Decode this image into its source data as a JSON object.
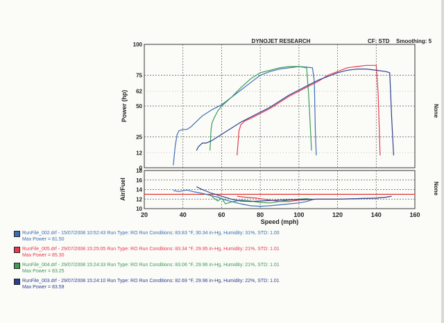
{
  "header": {
    "title": "DYNOJET RESEARCH",
    "cf": "CF: STD",
    "smoothing": "Smoothing: 5"
  },
  "right_labels": {
    "top": "None",
    "bottom": "None"
  },
  "chart_data": [
    {
      "type": "line",
      "title": "DYNOJET RESEARCH",
      "xlabel": "Speed (mph)",
      "ylabel": "Power (hp)",
      "xlim": [
        20,
        160
      ],
      "ylim": [
        0,
        100
      ],
      "x_ticks": [
        "20",
        "40",
        "60",
        "80",
        "100",
        "120",
        "140",
        "160"
      ],
      "y_ticks": [
        "0",
        "25",
        "50",
        "75",
        "100"
      ],
      "y_minor_ticks": [
        "12",
        "62"
      ],
      "grid": true,
      "series": [
        {
          "name": "RunFile_002.drf",
          "color": "#3a6fb3",
          "x": [
            35,
            36,
            37,
            38,
            40,
            42,
            44,
            46,
            50,
            55,
            60,
            65,
            70,
            75,
            80,
            85,
            90,
            95,
            100,
            104,
            107,
            108,
            108.5,
            109
          ],
          "y": [
            2,
            18,
            27,
            30,
            31,
            31,
            33,
            36,
            42,
            47,
            51,
            57,
            63,
            69,
            75,
            78,
            80,
            81,
            82,
            81.5,
            81,
            70,
            30,
            10
          ]
        },
        {
          "name": "RunFile_005.drf",
          "color": "#e8394a",
          "x": [
            68,
            69,
            70,
            72,
            75,
            80,
            85,
            90,
            95,
            100,
            105,
            110,
            115,
            120,
            125,
            130,
            135,
            140,
            141,
            142
          ],
          "y": [
            10,
            30,
            35,
            38,
            40,
            44,
            48,
            53,
            58,
            62,
            66,
            70,
            75,
            78,
            81,
            82,
            83,
            83,
            60,
            10
          ]
        },
        {
          "name": "RunFile_004.drf",
          "color": "#3d9b57",
          "x": [
            54,
            54.5,
            55,
            56,
            58,
            60,
            65,
            70,
            75,
            80,
            85,
            90,
            95,
            100,
            104,
            105,
            106,
            106.5
          ],
          "y": [
            14,
            30,
            36,
            40,
            46,
            50,
            57,
            65,
            72,
            77,
            79,
            81,
            82,
            82,
            81,
            60,
            30,
            14
          ]
        },
        {
          "name": "RunFile_003.drf",
          "color": "#2b3f8f",
          "x": [
            47,
            48,
            50,
            52,
            55,
            60,
            65,
            70,
            75,
            80,
            85,
            90,
            95,
            100,
            105,
            110,
            115,
            120,
            125,
            130,
            135,
            140,
            145,
            147,
            148,
            149
          ],
          "y": [
            14,
            17,
            20,
            20,
            22,
            27,
            32,
            37,
            41,
            45,
            49,
            54,
            59,
            63,
            67,
            71,
            74,
            77,
            79,
            80,
            80,
            79,
            78,
            77,
            40,
            10
          ]
        }
      ]
    },
    {
      "type": "line",
      "xlabel": "Speed (mph)",
      "ylabel": "Air/Fuel",
      "xlim": [
        20,
        160
      ],
      "ylim": [
        10,
        18
      ],
      "y_ticks": [
        "10",
        "12",
        "14",
        "16",
        "18"
      ],
      "x_ticks": [
        "20",
        "40",
        "60",
        "80",
        "100",
        "120",
        "140",
        "160"
      ],
      "grid": true,
      "reference_line": 13,
      "series": [
        {
          "name": "RunFile_002.drf",
          "color": "#3a6fb3",
          "x": [
            35,
            38,
            42,
            46,
            50,
            54,
            58,
            62,
            66,
            70,
            75,
            80,
            85,
            90,
            95,
            100,
            104,
            108
          ],
          "y": [
            13.8,
            13.6,
            13.9,
            13.5,
            13.2,
            12.8,
            12.4,
            11.8,
            11.4,
            11.0,
            10.6,
            10.5,
            10.6,
            10.8,
            11.0,
            11.2,
            11.5,
            12.0
          ]
        },
        {
          "name": "RunFile_005.drf",
          "color": "#e8394a",
          "x": [
            68,
            72,
            78,
            85,
            90,
            95,
            100,
            110,
            120,
            130,
            140,
            142
          ],
          "y": [
            12.6,
            12.4,
            12.2,
            11.8,
            11.5,
            11.5,
            11.8,
            12.0,
            12.0,
            12.1,
            12.2,
            12.3
          ]
        },
        {
          "name": "RunFile_004.drf",
          "color": "#3d9b57",
          "x": [
            54,
            56,
            58,
            60,
            62,
            65,
            70,
            75,
            80,
            85,
            90,
            95,
            100,
            104,
            106
          ],
          "y": [
            13.0,
            12.2,
            11.6,
            12.2,
            11.0,
            11.4,
            11.8,
            11.6,
            11.3,
            11.2,
            11.5,
            11.8,
            12.0,
            12.1,
            12.0
          ]
        },
        {
          "name": "RunFile_003.drf",
          "color": "#2b3f8f",
          "x": [
            47,
            50,
            55,
            60,
            65,
            70,
            75,
            80,
            90,
            100,
            110,
            120,
            130,
            140,
            145,
            148
          ],
          "y": [
            14.6,
            14.0,
            13.2,
            12.6,
            12.0,
            11.6,
            11.5,
            11.6,
            11.8,
            11.9,
            12.0,
            12.0,
            12.1,
            12.2,
            12.4,
            12.6
          ]
        }
      ]
    }
  ],
  "legend": [
    {
      "file": "RunFile_002.drf",
      "date": "15/07/2008 10:52:43",
      "run_type": "Run Type: RO",
      "conditions": "Run Conditions: 83.83 °F, 30.34 in-Hg,",
      "humidity": "Humidity: 31%,",
      "std": "STD: 1.00",
      "max_power": "Max Power = 81.50",
      "color": "#3a6fb3"
    },
    {
      "file": "RunFile_005.drf",
      "date": "29/07/2008 15:25:05",
      "run_type": "Run Type: RO",
      "conditions": "Run Conditions: 83.34 °F, 29.95 in-Hg,",
      "humidity": "Humidity: 21%,",
      "std": "STD: 1.01",
      "max_power": "Max Power = 85.30",
      "color": "#e8394a"
    },
    {
      "file": "RunFile_004.drf",
      "date": "29/07/2008 15:24:33",
      "run_type": "Run Type: RO",
      "conditions": "Run Conditions: 83.06 °F, 29.96 in-Hg,",
      "humidity": "Humidity: 21%,",
      "std": "STD: 1.01",
      "max_power": "Max Power = 83.25",
      "color": "#3d9b57"
    },
    {
      "file": "RunFile_003.drf",
      "date": "29/07/2008 15:24:10",
      "run_type": "Run Type: RO",
      "conditions": "Run Conditions: 82.69 °F, 29.96 in-Hg,",
      "humidity": "Humidity: 22%,",
      "std": "STD: 1.01",
      "max_power": "Max Power = 83.59",
      "color": "#2b3f8f"
    }
  ]
}
